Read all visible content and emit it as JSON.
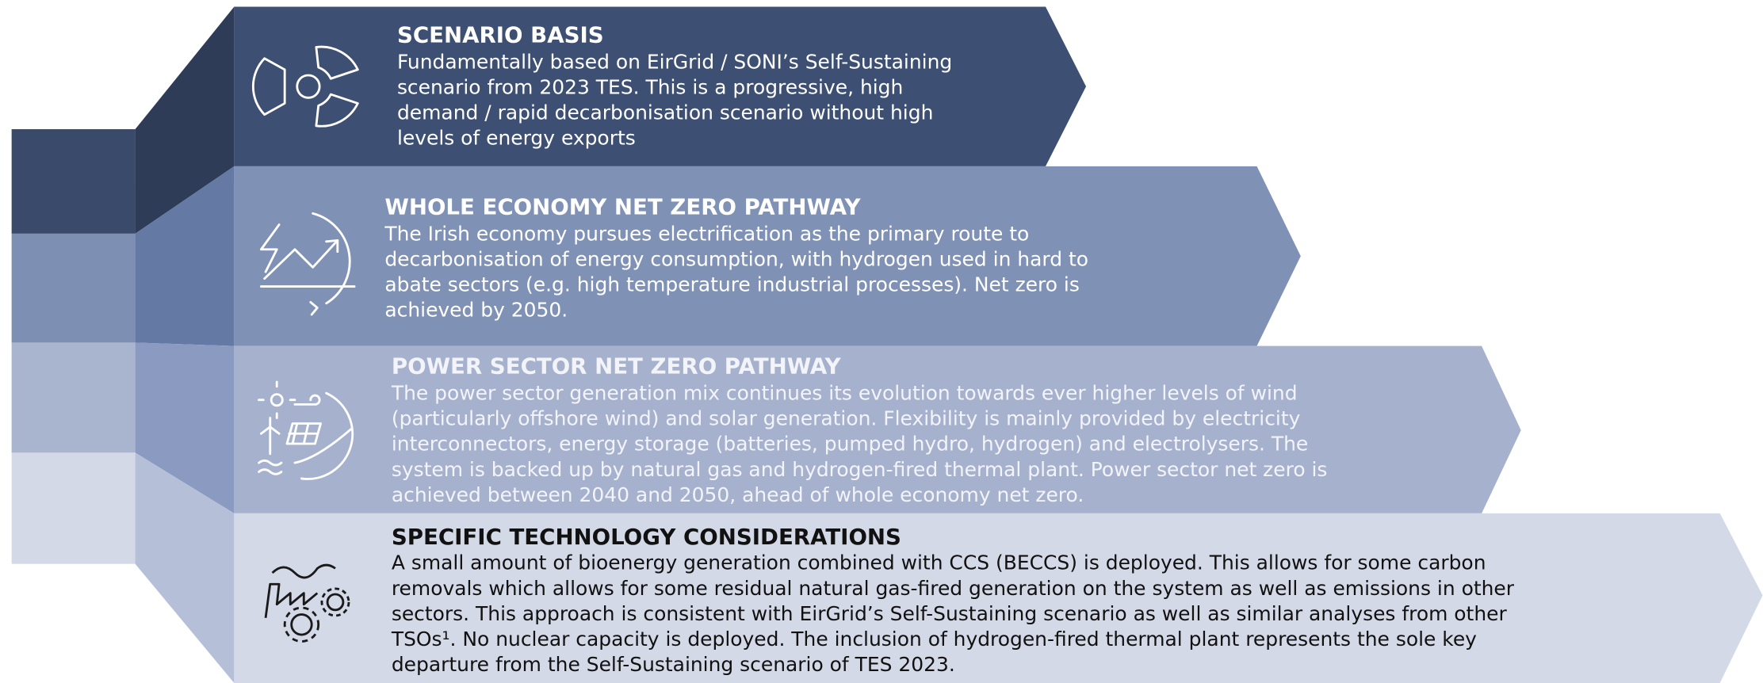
{
  "sections": [
    {
      "title": "SCENARIO BASIS",
      "lines": [
        "Fundamentally based on EirGrid / SONI’s Self-Sustaining",
        "scenario from 2023 TES. This is a progressive, high",
        "demand / rapid decarbonisation scenario without high",
        "levels of energy exports"
      ]
    },
    {
      "title": "WHOLE ECONOMY NET ZERO PATHWAY",
      "lines": [
        "The Irish economy pursues electrification as the primary route to",
        "decarbonisation of energy consumption, with hydrogen used in hard to",
        "abate sectors (e.g. high temperature industrial processes). Net zero is",
        "achieved by 2050."
      ]
    },
    {
      "title": "POWER SECTOR NET ZERO PATHWAY",
      "lines": [
        "The power sector generation mix continues its evolution towards ever higher levels of wind",
        "(particularly offshore wind) and solar generation. Flexibility is mainly provided by electricity",
        "interconnectors, energy storage (batteries, pumped hydro, hydrogen) and electrolysers. The",
        "system is backed up by natural gas and hydrogen-fired thermal plant. Power sector net zero is",
        "achieved between 2040 and 2050, ahead of whole economy net zero."
      ]
    },
    {
      "title": "SPECIFIC TECHNOLOGY CONSIDERATIONS",
      "lines": [
        "A small amount of bioenergy generation combined with CCS (BECCS) is deployed. This allows for some carbon",
        "removals which allows for some residual natural gas-fired generation on the system as well as emissions in other",
        "sectors. This approach is consistent with EirGrid’s Self-Sustaining scenario as well as similar analyses from other",
        "TSOs¹. No nuclear capacity is deployed. The inclusion of hydrogen-fired thermal plant represents the sole key",
        "departure from the Self-Sustaining scenario of TES 2023."
      ]
    }
  ]
}
